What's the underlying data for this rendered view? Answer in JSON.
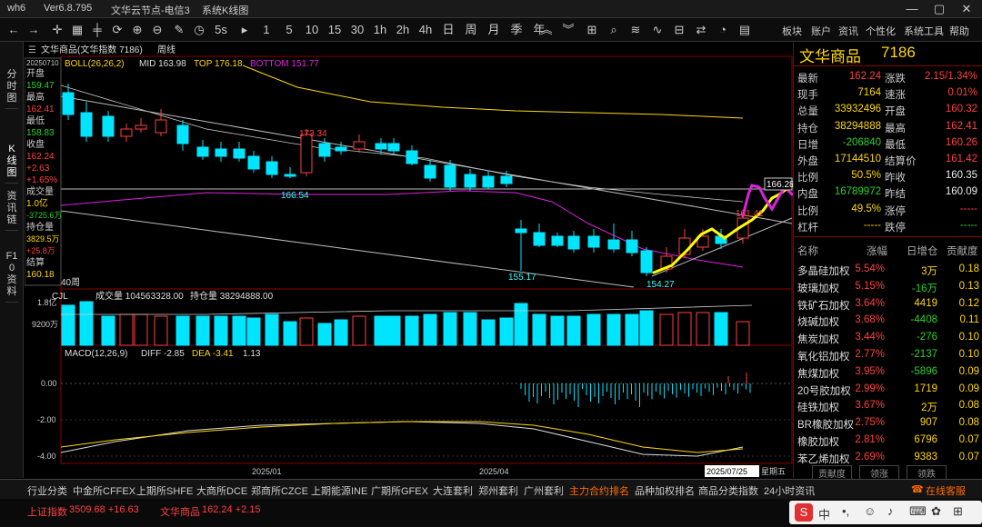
{
  "titlebar": {
    "app": "wh6",
    "version": "Ver6.8.795",
    "server": "文华云节点-电信3",
    "window": "系统K线图"
  },
  "toolbar": {
    "periods": [
      "1",
      "5",
      "10",
      "15",
      "30",
      "1h",
      "2h",
      "4h",
      "日",
      "周",
      "月",
      "季",
      "年"
    ],
    "menus": [
      "板块",
      "账户",
      "资讯",
      "个性化",
      "系统工具",
      "帮助"
    ],
    "s_label": "5s"
  },
  "left_tabs": [
    "分时图",
    "K线图",
    "资讯链",
    "F10资料"
  ],
  "chart_header": {
    "name": "文华商品(文华指数 7186)",
    "period": "周线"
  },
  "boll": {
    "label": "BOLL(26,26,2)",
    "mid": "MID 163.98",
    "top": "TOP 176.18",
    "bottom": "BOTTOM 151.77"
  },
  "info_panel": {
    "date": "20250710",
    "open_label": "开盘",
    "open": "159.47",
    "high_label": "最高",
    "high": "162.41",
    "low_label": "最低",
    "low": "158.83",
    "close_label": "收盘",
    "close": "162.24",
    "chg": "+2.63",
    "chg_pct": "+1.65%",
    "vol_label": "成交量",
    "vol": "1.0亿",
    "vol_chg": "-3725.6万",
    "oi_label": "持仓量",
    "oi": "3829.5万",
    "oi_chg": "+25.8万",
    "settle_label": "结算",
    "settle": "160.18"
  },
  "price_labels": {
    "h1": "173.34",
    "l1": "166.54",
    "l2": "155.17",
    "l3": "154.27",
    "r1": "166.28",
    "r2": "161.41",
    "weeks": "40周"
  },
  "cjl": {
    "label": "CJL",
    "vol": "成交量 104563328.00",
    "oi": "持仓量 38294888.00",
    "y1": "1.8亿",
    "y2": "9200万"
  },
  "macd": {
    "label": "MACD(12,26,9)",
    "diff": "DIFF -2.85",
    "dea": "DEA -3.41",
    "val": "1.13",
    "y": [
      "0.00",
      "-2.00",
      "-4.00"
    ]
  },
  "x_axis": {
    "t1": "2025/01",
    "t2": "2025/04",
    "t3": "2025/07/25",
    "t4": "星期五"
  },
  "quote": {
    "name": "文华商品",
    "code": "7186",
    "rows": [
      [
        "最新",
        "162.24",
        "涨跌",
        "2.15/1.34%"
      ],
      [
        "现手",
        "7164",
        "速涨",
        "0.01%"
      ],
      [
        "总量",
        "33932496",
        "开盘",
        "160.32"
      ],
      [
        "持仓",
        "38294888",
        "最高",
        "162.41"
      ],
      [
        "日增",
        "-206840",
        "最低",
        "160.26"
      ],
      [
        "外盘",
        "17144510",
        "结算价",
        "161.42"
      ],
      [
        "比例",
        "50.5%",
        "昨收",
        "160.35"
      ],
      [
        "内盘",
        "16789972",
        "昨结",
        "160.09"
      ],
      [
        "比例",
        "49.5%",
        "涨停",
        "-----"
      ],
      [
        "杠杆",
        "-----",
        "跌停",
        "-----"
      ]
    ]
  },
  "sectors": {
    "headers": [
      "名称",
      "涨幅",
      "日增仓",
      "贡献度"
    ],
    "rows": [
      [
        "多晶硅加权",
        "5.54%",
        "3万",
        "0.18"
      ],
      [
        "玻璃加权",
        "5.15%",
        "-16万",
        "0.13"
      ],
      [
        "铁矿石加权",
        "3.64%",
        "4419",
        "0.12"
      ],
      [
        "烧碱加权",
        "3.68%",
        "-4408",
        "0.11"
      ],
      [
        "焦炭加权",
        "3.44%",
        "-276",
        "0.10"
      ],
      [
        "氧化铝加权",
        "2.77%",
        "-2137",
        "0.10"
      ],
      [
        "焦煤加权",
        "3.95%",
        "-5896",
        "0.09"
      ],
      [
        "20号胶加权",
        "2.99%",
        "1719",
        "0.09"
      ],
      [
        "硅铁加权",
        "3.67%",
        "2万",
        "0.08"
      ],
      [
        "BR橡胶加权",
        "2.75%",
        "907",
        "0.08"
      ],
      [
        "橡胶加权",
        "2.81%",
        "6796",
        "0.07"
      ],
      [
        "苯乙烯加权",
        "2.69%",
        "9383",
        "0.07"
      ]
    ],
    "tabs": [
      "贡献度",
      "领涨",
      "领跌"
    ]
  },
  "bottom_tabs": [
    "行业分类",
    "中金所CFFEX",
    "上期所SHFE",
    "大商所DCE",
    "郑商所CZCE",
    "上期能源INE",
    "广期所GFEX",
    "大连套利",
    "郑州套利",
    "广州套利",
    "主力合约排名",
    "品种加权排名",
    "商品分类指数",
    "24小时资讯"
  ],
  "online_service": "在线客服",
  "status": {
    "idx1_name": "上证指数",
    "idx1": "3509.68 +16.63",
    "idx2_name": "文华商品",
    "idx2": "162.24 +2.15"
  },
  "colors": {
    "up": "#ff4040",
    "down": "#00e5ff",
    "boll_mid": "#ffd800",
    "boll_top": "#ffd800",
    "boll_bottom": "#e020e0",
    "accent": "#ff6a00"
  }
}
